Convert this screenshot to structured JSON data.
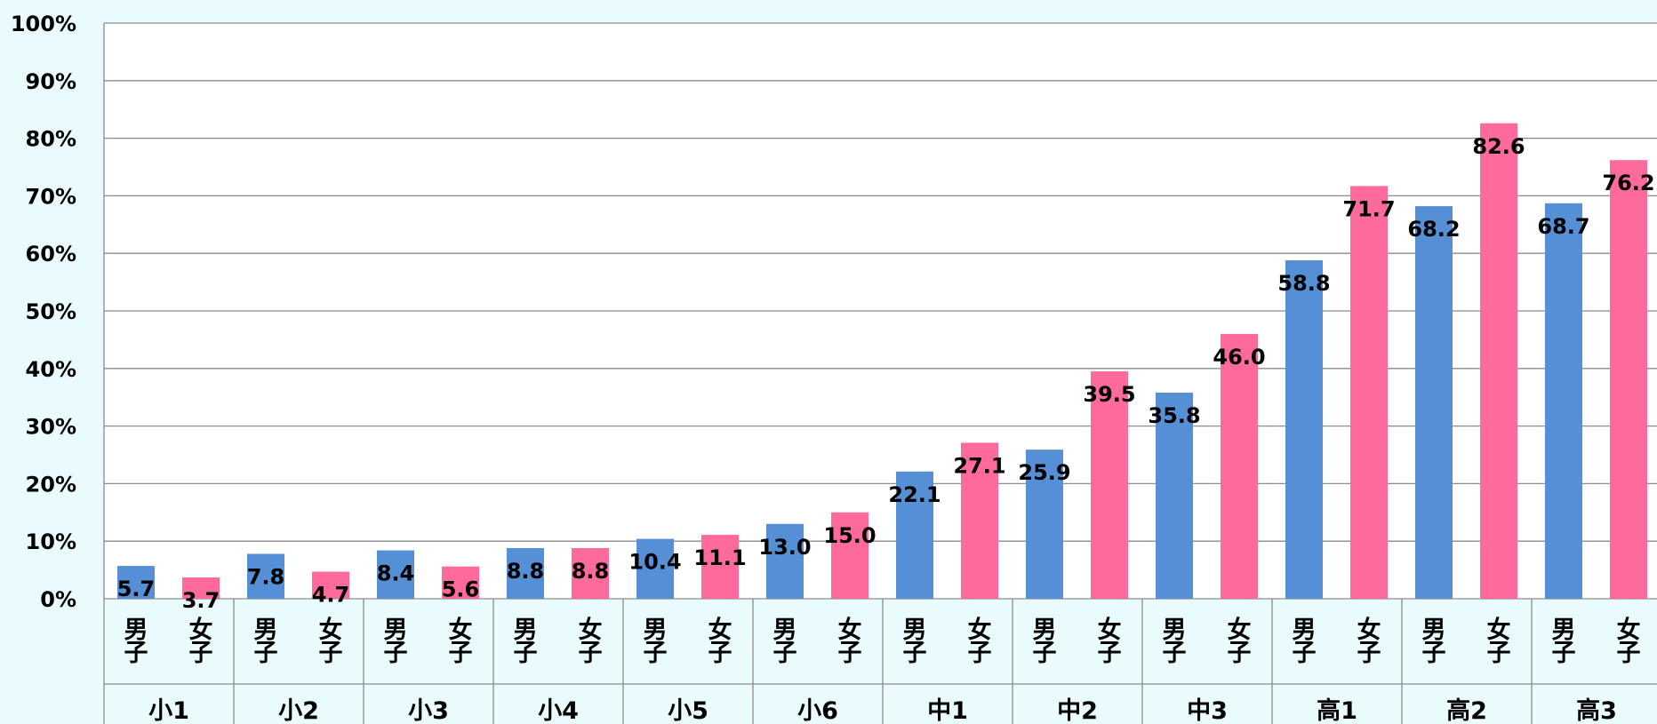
{
  "chart_data": {
    "type": "bar",
    "ylim": [
      0,
      100
    ],
    "y_ticks": [
      "0%",
      "10%",
      "20%",
      "30%",
      "40%",
      "50%",
      "60%",
      "70%",
      "80%",
      "90%",
      "100%"
    ],
    "grid": true,
    "groups": [
      {
        "label": "小1",
        "categories": [
          "男子",
          "女子"
        ],
        "values": [
          5.7,
          3.7
        ],
        "value_labels": [
          "5.7",
          "3.7"
        ]
      },
      {
        "label": "小2",
        "categories": [
          "男子",
          "女子"
        ],
        "values": [
          7.8,
          4.7
        ],
        "value_labels": [
          "7.8",
          "4.7"
        ]
      },
      {
        "label": "小3",
        "categories": [
          "男子",
          "女子"
        ],
        "values": [
          8.4,
          5.6
        ],
        "value_labels": [
          "8.4",
          "5.6"
        ]
      },
      {
        "label": "小4",
        "categories": [
          "男子",
          "女子"
        ],
        "values": [
          8.8,
          8.8
        ],
        "value_labels": [
          "8.8",
          "8.8"
        ]
      },
      {
        "label": "小5",
        "categories": [
          "男子",
          "女子"
        ],
        "values": [
          10.4,
          11.1
        ],
        "value_labels": [
          "10.4",
          "11.1"
        ]
      },
      {
        "label": "小6",
        "categories": [
          "男子",
          "女子"
        ],
        "values": [
          13.0,
          15.0
        ],
        "value_labels": [
          "13.0",
          "15.0"
        ]
      },
      {
        "label": "中1",
        "categories": [
          "男子",
          "女子"
        ],
        "values": [
          22.1,
          27.1
        ],
        "value_labels": [
          "22.1",
          "27.1"
        ]
      },
      {
        "label": "中2",
        "categories": [
          "男子",
          "女子"
        ],
        "values": [
          25.9,
          39.5
        ],
        "value_labels": [
          "25.9",
          "39.5"
        ]
      },
      {
        "label": "中3",
        "categories": [
          "男子",
          "女子"
        ],
        "values": [
          35.8,
          46.0
        ],
        "value_labels": [
          "35.8",
          "46.0"
        ]
      },
      {
        "label": "高1",
        "categories": [
          "男子",
          "女子"
        ],
        "values": [
          58.8,
          71.7
        ],
        "value_labels": [
          "58.8",
          "71.7"
        ]
      },
      {
        "label": "高2",
        "categories": [
          "男子",
          "女子"
        ],
        "values": [
          68.2,
          82.6
        ],
        "value_labels": [
          "68.2",
          "82.6"
        ]
      },
      {
        "label": "高3",
        "categories": [
          "男子",
          "女子"
        ],
        "values": [
          68.7,
          76.2
        ],
        "value_labels": [
          "68.7",
          "76.2"
        ]
      }
    ],
    "colors": {
      "男子": "#5590d6",
      "女子": "#ff6a9d"
    }
  }
}
